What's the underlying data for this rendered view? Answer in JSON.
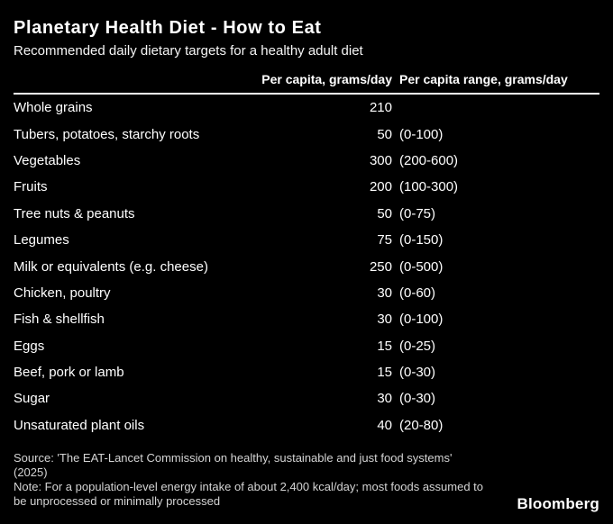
{
  "header": {
    "title": "Planetary Health Diet - How to Eat",
    "subtitle": "Recommended daily dietary targets for a healthy adult diet"
  },
  "chart_data": {
    "type": "table",
    "title": "Planetary Health Diet - How to Eat",
    "subtitle": "Recommended daily dietary targets for a healthy adult diet",
    "columns": {
      "label_header": "",
      "value_header": "Per capita, grams/day",
      "range_header": "Per capita range, grams/day"
    },
    "rows": [
      {
        "label": "Whole grains",
        "value": "210",
        "range": ""
      },
      {
        "label": "Tubers, potatoes, starchy roots",
        "value": "50",
        "range": "(0-100)"
      },
      {
        "label": "Vegetables",
        "value": "300",
        "range": "(200-600)"
      },
      {
        "label": "Fruits",
        "value": "200",
        "range": "(100-300)"
      },
      {
        "label": "Tree nuts & peanuts",
        "value": "50",
        "range": "(0-75)"
      },
      {
        "label": "Legumes",
        "value": "75",
        "range": "(0-150)"
      },
      {
        "label": "Milk or equivalents (e.g. cheese)",
        "value": "250",
        "range": "(0-500)"
      },
      {
        "label": "Chicken, poultry",
        "value": "30",
        "range": "(0-60)"
      },
      {
        "label": "Fish & shellfish",
        "value": "30",
        "range": "(0-100)"
      },
      {
        "label": "Eggs",
        "value": "15",
        "range": "(0-25)"
      },
      {
        "label": "Beef, pork or lamb",
        "value": "15",
        "range": "(0-30)"
      },
      {
        "label": "Sugar",
        "value": "30",
        "range": "(0-30)"
      },
      {
        "label": "Unsaturated plant oils",
        "value": "40",
        "range": "(20-80)"
      }
    ]
  },
  "footer": {
    "source": "Source: 'The EAT-Lancet Commission on healthy, sustainable and just food systems' (2025)",
    "note": "Note: For a population-level energy intake of about 2,400 kcal/day; most foods assumed to be unprocessed or minimally processed",
    "brand": "Bloomberg"
  },
  "colors": {
    "background": "#000000",
    "text": "#ffffff",
    "muted_text": "#d4d4d4",
    "rule": "#ffffff"
  }
}
